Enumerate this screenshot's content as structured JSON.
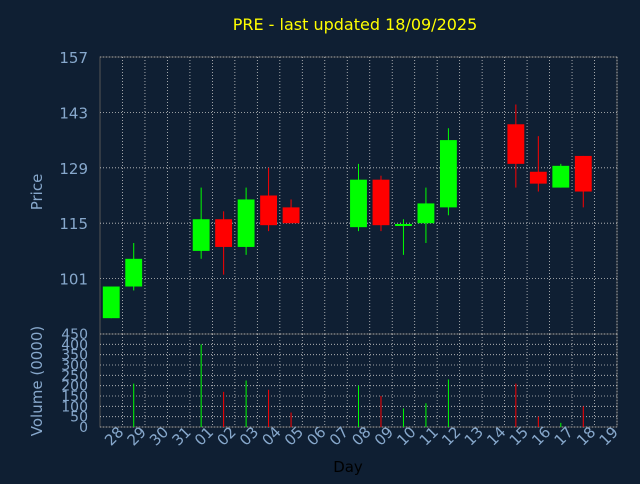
{
  "chart_data": {
    "type": "candlestick",
    "title": "PRE - last updated 18/09/2025",
    "xlabel": "Day",
    "grid": true,
    "colors": {
      "background": "#0f1f33",
      "title": "#ffff00",
      "axis_text": "#87a8cc",
      "grid": "#c8c8c8",
      "up": "#00ff00",
      "down": "#ff0000"
    },
    "categories": [
      "28",
      "29",
      "30",
      "31",
      "01",
      "02",
      "03",
      "04",
      "05",
      "06",
      "07",
      "08",
      "09",
      "10",
      "11",
      "12",
      "13",
      "14",
      "15",
      "16",
      "17",
      "18",
      "19"
    ],
    "price_panel": {
      "ylabel": "Price",
      "ylim": [
        87,
        157
      ],
      "yticks": [
        101,
        115,
        129,
        143,
        157
      ]
    },
    "volume_panel": {
      "ylabel": "Volume (0000)",
      "ylim": [
        0,
        450
      ],
      "yticks": [
        0,
        50,
        100,
        150,
        200,
        250,
        300,
        350,
        400,
        450
      ]
    },
    "series": [
      {
        "day": "28",
        "open": 91,
        "high": 99,
        "low": 91,
        "close": 99,
        "volume": 0
      },
      {
        "day": "29",
        "open": 99,
        "high": 110,
        "low": 98,
        "close": 106,
        "volume": 210
      },
      {
        "day": "01",
        "open": 108,
        "high": 124,
        "low": 106,
        "close": 116,
        "volume": 400
      },
      {
        "day": "02",
        "open": 116,
        "high": 118,
        "low": 102,
        "close": 109,
        "volume": 170
      },
      {
        "day": "03",
        "open": 109,
        "high": 124,
        "low": 107,
        "close": 121,
        "volume": 225
      },
      {
        "day": "04",
        "open": 122,
        "high": 129,
        "low": 113,
        "close": 114.5,
        "volume": 180
      },
      {
        "day": "05",
        "open": 119,
        "high": 121,
        "low": 115,
        "close": 115,
        "volume": 70
      },
      {
        "day": "08",
        "open": 114,
        "high": 130,
        "low": 113,
        "close": 126,
        "volume": 200
      },
      {
        "day": "09",
        "open": 126,
        "high": 127,
        "low": 113,
        "close": 114.5,
        "volume": 150
      },
      {
        "day": "10",
        "open": 114.3,
        "high": 116,
        "low": 107,
        "close": 114.8,
        "volume": 90
      },
      {
        "day": "11",
        "open": 115,
        "high": 124,
        "low": 110,
        "close": 120,
        "volume": 115
      },
      {
        "day": "12",
        "open": 119,
        "high": 139,
        "low": 117,
        "close": 136,
        "volume": 230
      },
      {
        "day": "15",
        "open": 140,
        "high": 145,
        "low": 124,
        "close": 130,
        "volume": 210
      },
      {
        "day": "16",
        "open": 128,
        "high": 137,
        "low": 123,
        "close": 125,
        "volume": 50
      },
      {
        "day": "17",
        "open": 124,
        "high": 130,
        "low": 124,
        "close": 129.5,
        "volume": 20
      },
      {
        "day": "18",
        "open": 132,
        "high": 132,
        "low": 119,
        "close": 123,
        "volume": 100
      }
    ]
  }
}
